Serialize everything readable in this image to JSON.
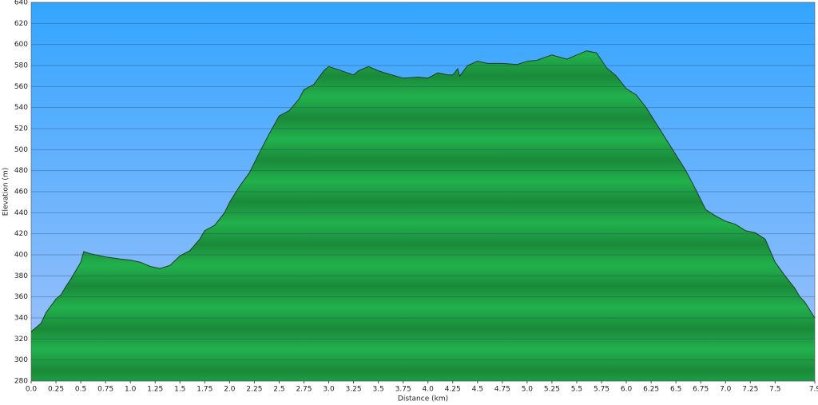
{
  "chart_data": {
    "type": "area",
    "x_label": "Distance   (km)",
    "y_label": "Elevation (m)",
    "x": [
      0.0,
      0.1,
      0.15,
      0.25,
      0.3,
      0.35,
      0.4,
      0.45,
      0.5,
      0.53,
      0.6,
      0.75,
      0.9,
      1.0,
      1.1,
      1.2,
      1.3,
      1.4,
      1.5,
      1.6,
      1.7,
      1.75,
      1.85,
      1.95,
      2.0,
      2.1,
      2.2,
      2.3,
      2.4,
      2.5,
      2.6,
      2.7,
      2.75,
      2.85,
      2.95,
      3.0,
      3.1,
      3.25,
      3.3,
      3.4,
      3.5,
      3.6,
      3.75,
      3.9,
      4.0,
      4.1,
      4.2,
      4.25,
      4.3,
      4.32,
      4.4,
      4.5,
      4.6,
      4.75,
      4.9,
      5.0,
      5.1,
      5.25,
      5.4,
      5.5,
      5.6,
      5.7,
      5.8,
      5.9,
      6.0,
      6.1,
      6.2,
      6.3,
      6.4,
      6.5,
      6.6,
      6.7,
      6.8,
      6.9,
      7.0,
      7.1,
      7.2,
      7.3,
      7.4,
      7.5,
      7.6,
      7.7,
      7.75,
      7.8,
      7.9
    ],
    "values": [
      327,
      335,
      345,
      358,
      362,
      370,
      377,
      385,
      393,
      403,
      401,
      398,
      396,
      395,
      393,
      389,
      387,
      390,
      399,
      404,
      415,
      423,
      428,
      440,
      450,
      465,
      478,
      497,
      515,
      532,
      537,
      548,
      557,
      562,
      575,
      579,
      576,
      571,
      575,
      579,
      575,
      572,
      568,
      569,
      568,
      573,
      571,
      571,
      577,
      570,
      580,
      584,
      582,
      582,
      581,
      584,
      585,
      590,
      586,
      590,
      594,
      592,
      578,
      570,
      558,
      552,
      540,
      525,
      510,
      495,
      480,
      462,
      443,
      437,
      432,
      429,
      423,
      421,
      415,
      393,
      380,
      368,
      360,
      355,
      340
    ],
    "color": "#22b14c",
    "xlim": [
      0,
      7.9
    ],
    "xticks": [
      {
        "value": 0,
        "label": "0.0"
      },
      0.25,
      0.5,
      0.75,
      {
        "value": 1,
        "label": "1.0"
      },
      1.25,
      1.5,
      1.75,
      {
        "value": 2,
        "label": "2.0"
      },
      2.25,
      2.5,
      2.75,
      {
        "value": 3,
        "label": "3.0"
      },
      3.25,
      3.5,
      3.75,
      {
        "value": 4,
        "label": "4.0"
      },
      4.25,
      4.5,
      4.75,
      {
        "value": 5,
        "label": "5.0"
      },
      5.25,
      5.5,
      5.75,
      {
        "value": 6,
        "label": "6.0"
      },
      6.25,
      6.5,
      6.75,
      {
        "value": 7,
        "label": "7.0"
      },
      7.25,
      7.5,
      7.9
    ],
    "ylim": [
      280,
      640
    ],
    "yticks": [
      280,
      300,
      320,
      340,
      360,
      380,
      400,
      420,
      440,
      460,
      480,
      500,
      520,
      540,
      560,
      580,
      600,
      620,
      640
    ],
    "grid": true
  }
}
